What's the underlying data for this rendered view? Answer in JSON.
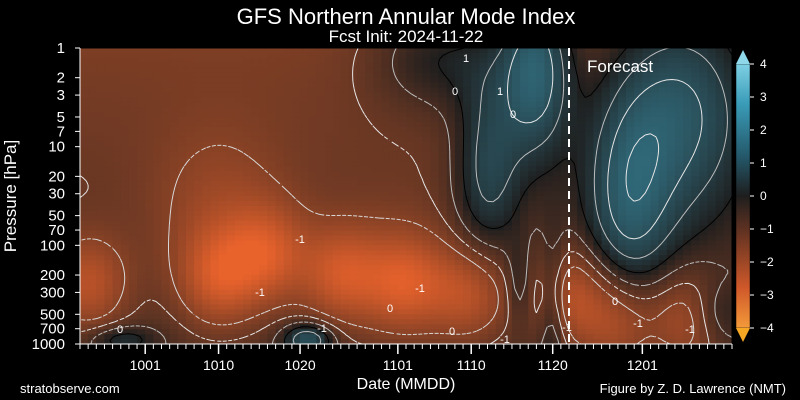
{
  "chart_data": {
    "type": "heatmap",
    "title": "GFS Northern Annular Mode Index",
    "subtitle": "Fcst Init: 2024-11-22",
    "xlabel": "Date (MMDD)",
    "ylabel": "Pressure [hPa]",
    "x_ticks": [
      "1001",
      "1010",
      "1020",
      "1101",
      "1110",
      "1120",
      "1201"
    ],
    "x_tick_days": [
      8,
      17,
      27,
      39,
      48,
      58,
      69
    ],
    "x_range_days": [
      0,
      80
    ],
    "y_ticks": [
      "1",
      "2",
      "3",
      "5",
      "7",
      "10",
      "20",
      "30",
      "50",
      "70",
      "100",
      "200",
      "300",
      "500",
      "700",
      "1000"
    ],
    "y_tick_values": [
      1,
      2,
      3,
      5,
      7,
      10,
      20,
      30,
      50,
      70,
      100,
      200,
      300,
      500,
      700,
      1000
    ],
    "y_range": [
      1,
      1000
    ],
    "y_scale": "log-inverted",
    "forecast_start_day": 60,
    "forecast_label": "Forecast",
    "colorbar": {
      "ticks": [
        "4",
        "3",
        "2",
        "1",
        "0",
        "−1",
        "−2",
        "−3",
        "−4"
      ],
      "values": [
        4,
        3,
        2,
        1,
        0,
        -1,
        -2,
        -3,
        -4
      ],
      "range": [
        -4,
        4
      ],
      "color_pos": "#3ea3c0",
      "color_neg": "#e8622c",
      "color_mid": "#1e1e1e"
    },
    "contour_labels": [
      "1",
      "0",
      "-1",
      "-1",
      "-1",
      "-1",
      "-1",
      "0",
      "0",
      "0",
      "-1",
      "0",
      "-1",
      "-1",
      "0",
      "1"
    ],
    "grid": false,
    "legend": "none"
  },
  "footer": {
    "left": "stratobserve.com",
    "right": "Figure by Z. D. Lawrence (NMT)"
  }
}
